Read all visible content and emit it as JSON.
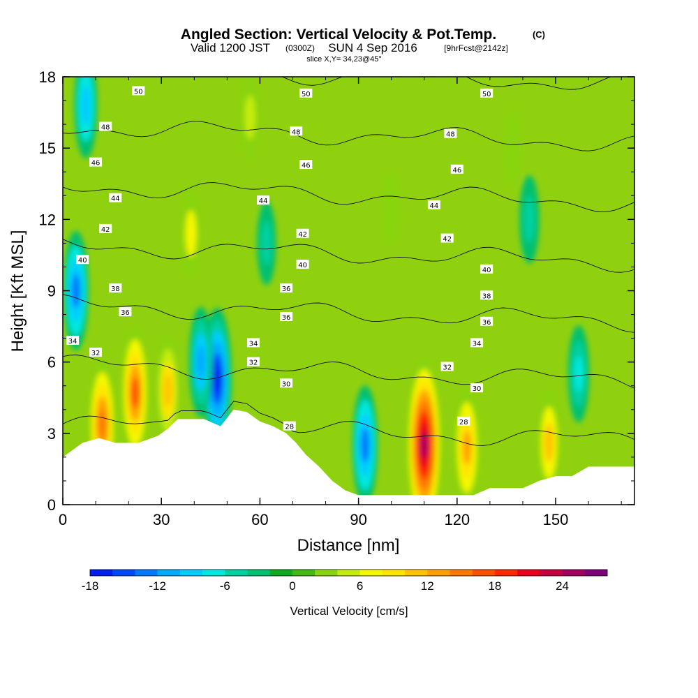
{
  "header": {
    "title": "Angled Section: Vertical Velocity & Pot.Temp.",
    "title_mark": "(C)",
    "valid_prefix": "Valid 1200 JST",
    "valid_zulu": "(0300Z)",
    "valid_date": "SUN 4 Sep 2016",
    "forecast": "[9hrFcst@2142z]",
    "slice": "slice X,Y= 34,23@45°"
  },
  "chart_data": {
    "type": "heatmap",
    "xlabel": "Distance [nm]",
    "ylabel": "Height [Kft MSL]",
    "xlim": [
      0,
      174
    ],
    "ylim": [
      0,
      18
    ],
    "x_ticks": [
      0,
      30,
      60,
      90,
      120,
      150
    ],
    "y_ticks": [
      0,
      3,
      6,
      9,
      12,
      15,
      18
    ],
    "terrain_kft": [
      [
        0,
        2.0
      ],
      [
        3,
        2.3
      ],
      [
        6,
        2.6
      ],
      [
        11,
        2.8
      ],
      [
        16,
        2.6
      ],
      [
        23,
        2.6
      ],
      [
        29,
        2.9
      ],
      [
        32,
        3.2
      ],
      [
        35,
        3.6
      ],
      [
        40,
        3.6
      ],
      [
        43,
        3.6
      ],
      [
        48,
        3.3
      ],
      [
        52,
        4.0
      ],
      [
        56,
        3.9
      ],
      [
        60,
        3.5
      ],
      [
        64,
        3.3
      ],
      [
        68,
        3.0
      ],
      [
        71,
        2.6
      ],
      [
        74,
        2.1
      ],
      [
        78,
        1.6
      ],
      [
        82,
        1.0
      ],
      [
        86,
        0.6
      ],
      [
        90,
        0.4
      ],
      [
        96,
        0.4
      ],
      [
        103,
        0.4
      ],
      [
        108,
        0.4
      ],
      [
        113,
        0.4
      ],
      [
        118,
        0.4
      ],
      [
        125,
        0.4
      ],
      [
        130,
        0.7
      ],
      [
        135,
        0.7
      ],
      [
        140,
        0.7
      ],
      [
        145,
        1.0
      ],
      [
        150,
        1.2
      ],
      [
        155,
        1.2
      ],
      [
        160,
        1.6
      ],
      [
        166,
        1.6
      ],
      [
        174,
        1.6
      ]
    ],
    "theta_contours_c": [
      28,
      30,
      32,
      34,
      36,
      38,
      40,
      42,
      44,
      46,
      48,
      50
    ],
    "theta_contour_labels": [
      {
        "value": 50,
        "x": 23,
        "y": 17.4
      },
      {
        "value": 50,
        "x": 74,
        "y": 17.3
      },
      {
        "value": 50,
        "x": 129,
        "y": 17.3
      },
      {
        "value": 48,
        "x": 13,
        "y": 15.9
      },
      {
        "value": 48,
        "x": 71,
        "y": 15.7
      },
      {
        "value": 48,
        "x": 118,
        "y": 15.6
      },
      {
        "value": 46,
        "x": 10,
        "y": 14.4
      },
      {
        "value": 46,
        "x": 74,
        "y": 14.3
      },
      {
        "value": 46,
        "x": 120,
        "y": 14.1
      },
      {
        "value": 44,
        "x": 16,
        "y": 12.9
      },
      {
        "value": 44,
        "x": 61,
        "y": 12.8
      },
      {
        "value": 44,
        "x": 113,
        "y": 12.6
      },
      {
        "value": 42,
        "x": 13,
        "y": 11.6
      },
      {
        "value": 42,
        "x": 73,
        "y": 11.4
      },
      {
        "value": 42,
        "x": 117,
        "y": 11.2
      },
      {
        "value": 40,
        "x": 6,
        "y": 10.3
      },
      {
        "value": 40,
        "x": 73,
        "y": 10.1
      },
      {
        "value": 40,
        "x": 129,
        "y": 9.9
      },
      {
        "value": 38,
        "x": 16,
        "y": 9.1
      },
      {
        "value": 38,
        "x": 129,
        "y": 8.8
      },
      {
        "value": 36,
        "x": 68,
        "y": 9.1
      },
      {
        "value": 36,
        "x": 19,
        "y": 8.1
      },
      {
        "value": 36,
        "x": 68,
        "y": 7.9
      },
      {
        "value": 36,
        "x": 129,
        "y": 7.7
      },
      {
        "value": 34,
        "x": 3,
        "y": 6.9
      },
      {
        "value": 34,
        "x": 58,
        "y": 6.8
      },
      {
        "value": 34,
        "x": 126,
        "y": 6.8
      },
      {
        "value": 32,
        "x": 10,
        "y": 6.4
      },
      {
        "value": 32,
        "x": 58,
        "y": 6.0
      },
      {
        "value": 32,
        "x": 117,
        "y": 5.8
      },
      {
        "value": 30,
        "x": 68,
        "y": 5.1
      },
      {
        "value": 30,
        "x": 126,
        "y": 4.9
      },
      {
        "value": 28,
        "x": 69,
        "y": 3.3
      },
      {
        "value": 28,
        "x": 122,
        "y": 3.5
      }
    ],
    "vertical_velocity_features_cm_s": [
      {
        "x": 12,
        "y": 3.4,
        "value": 15
      },
      {
        "x": 22,
        "y": 4.7,
        "value": 16
      },
      {
        "x": 32,
        "y": 4.8,
        "value": 11
      },
      {
        "x": 39,
        "y": 11.4,
        "value": 6
      },
      {
        "x": 47,
        "y": 5.3,
        "value": -18
      },
      {
        "x": 42,
        "y": 6.0,
        "value": -11
      },
      {
        "x": 4,
        "y": 9.0,
        "value": -13
      },
      {
        "x": 7,
        "y": 16.8,
        "value": -10
      },
      {
        "x": 57,
        "y": 16.3,
        "value": 5
      },
      {
        "x": 92,
        "y": 2.5,
        "value": -13
      },
      {
        "x": 110,
        "y": 2.5,
        "value": 25
      },
      {
        "x": 123,
        "y": 2.4,
        "value": 13
      },
      {
        "x": 148,
        "y": 2.6,
        "value": 10
      },
      {
        "x": 157,
        "y": 5.5,
        "value": -8
      },
      {
        "x": 142,
        "y": 12.0,
        "value": -6
      },
      {
        "x": 62,
        "y": 11.0,
        "value": -5
      },
      {
        "x": 100,
        "y": 12.5,
        "value": 3
      },
      {
        "x": 137,
        "y": 15.0,
        "value": 3
      }
    ],
    "colorbar": {
      "label": "Vertical Velocity [cm/s]",
      "min": -18,
      "max": 27,
      "step": 2,
      "tick_labels": [
        "-18",
        "-12",
        "-6",
        "0",
        "6",
        "12",
        "18",
        "24"
      ],
      "colors": [
        "#0020ee",
        "#0048ff",
        "#0078ff",
        "#00aaff",
        "#00ccff",
        "#00e8e0",
        "#00d0a0",
        "#00c070",
        "#10a820",
        "#44b814",
        "#88d410",
        "#c4ec10",
        "#f4f800",
        "#ffe400",
        "#ffc400",
        "#ffa000",
        "#ff7800",
        "#ff5000",
        "#ff2800",
        "#e8001c",
        "#c40040",
        "#a00060",
        "#7c0078"
      ]
    }
  }
}
